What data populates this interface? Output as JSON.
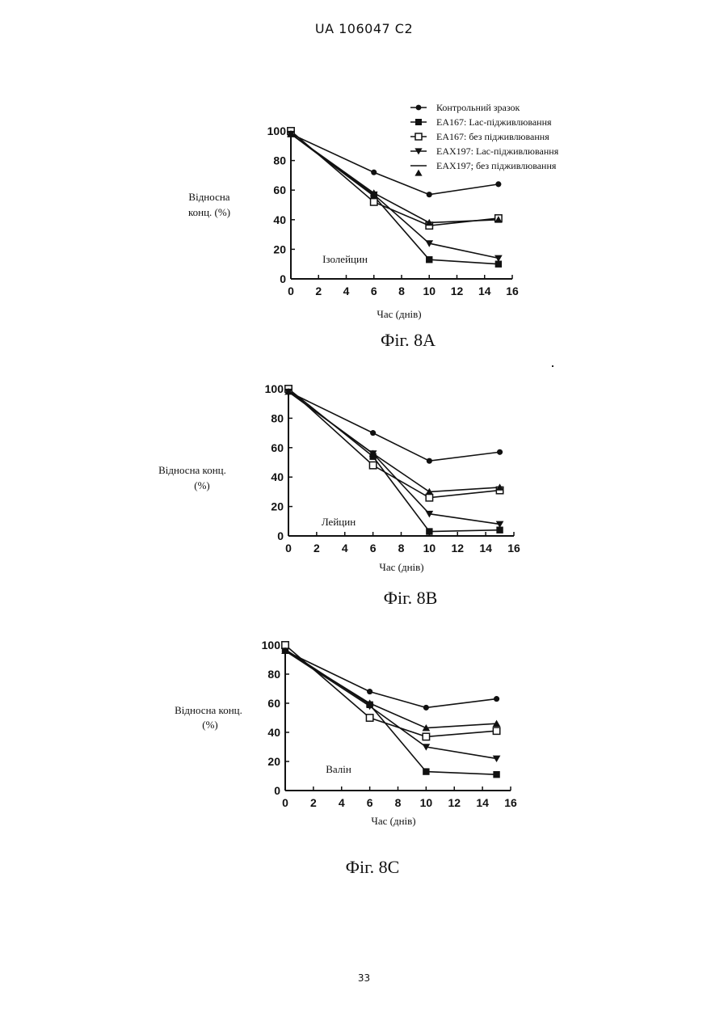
{
  "header": {
    "text": "UA   106047   C2"
  },
  "footer": {
    "page_number": "33"
  },
  "legend": {
    "entries": [
      {
        "label": "Контрольний зразок",
        "marker": "circle"
      },
      {
        "label": "EA167: Lac-підживлювання",
        "marker": "square"
      },
      {
        "label": "EA167: без підживлювання",
        "marker": "open-square"
      },
      {
        "label": "EAX197: Lac-підживлювання",
        "marker": "triangle-down"
      },
      {
        "label": "EAX197; без підживлювання",
        "marker": "triangle-up"
      }
    ]
  },
  "chart_data": [
    {
      "type": "line",
      "figure_label": "Фіг. 8А",
      "inner_label": "Ізолейцин",
      "ylabel_lines": [
        "Відносна",
        "конц. (%)"
      ],
      "xlabel": "Час (днів)",
      "xlim": [
        0,
        16
      ],
      "ylim": [
        0,
        100
      ],
      "xticks": [
        "0",
        "2",
        "4",
        "6",
        "8",
        "10",
        "12",
        "14",
        "16"
      ],
      "yticks": [
        "0",
        "20",
        "40",
        "60",
        "80",
        "100"
      ],
      "x": [
        0,
        6,
        10,
        15
      ],
      "series": [
        {
          "name": "Контрольний зразок",
          "marker": "circle",
          "values": [
            98,
            72,
            57,
            64
          ]
        },
        {
          "name": "EA167: Lac-підживлювання",
          "marker": "square",
          "values": [
            98,
            56,
            13,
            10
          ]
        },
        {
          "name": "EA167: без підживлювання",
          "marker": "open-square",
          "values": [
            100,
            52,
            36,
            41
          ]
        },
        {
          "name": "EAX197: Lac-підживлювання",
          "marker": "triangle-down",
          "values": [
            98,
            57,
            24,
            14
          ]
        },
        {
          "name": "EAX197; без підживлювання",
          "marker": "triangle-up",
          "values": [
            98,
            58,
            38,
            40
          ]
        }
      ]
    },
    {
      "type": "line",
      "figure_label": "Фіг. 8В",
      "inner_label": "Лейцин",
      "ylabel_lines": [
        "Відносна конц.",
        "(%)"
      ],
      "xlabel": "Час (днів)",
      "xlim": [
        0,
        16
      ],
      "ylim": [
        0,
        100
      ],
      "xticks": [
        "0",
        "2",
        "4",
        "6",
        "8",
        "10",
        "12",
        "14",
        "16"
      ],
      "yticks": [
        "0",
        "20",
        "40",
        "60",
        "80",
        "100"
      ],
      "x": [
        0,
        6,
        10,
        15
      ],
      "series": [
        {
          "name": "Контрольний зразок",
          "marker": "circle",
          "values": [
            98,
            70,
            51,
            57
          ]
        },
        {
          "name": "EA167: Lac-підживлювання",
          "marker": "square",
          "values": [
            100,
            54,
            3,
            4
          ]
        },
        {
          "name": "EA167: без підживлювання",
          "marker": "open-square",
          "values": [
            100,
            48,
            26,
            31
          ]
        },
        {
          "name": "EAX197: Lac-підживлювання",
          "marker": "triangle-down",
          "values": [
            98,
            56,
            15,
            8
          ]
        },
        {
          "name": "EAX197; без підживлювання",
          "marker": "triangle-up",
          "values": [
            98,
            56,
            30,
            33
          ]
        }
      ]
    },
    {
      "type": "line",
      "figure_label": "Фіг. 8С",
      "inner_label": "Валін",
      "ylabel_lines": [
        "Відносна конц.",
        "(%)"
      ],
      "xlabel": "Час (днів)",
      "xlim": [
        0,
        16
      ],
      "ylim": [
        0,
        100
      ],
      "xticks": [
        "0",
        "2",
        "4",
        "6",
        "8",
        "10",
        "12",
        "14",
        "16"
      ],
      "yticks": [
        "0",
        "20",
        "40",
        "60",
        "80",
        "100"
      ],
      "x": [
        0,
        6,
        10,
        15
      ],
      "series": [
        {
          "name": "Контрольний зразок",
          "marker": "circle",
          "values": [
            96,
            68,
            57,
            63
          ]
        },
        {
          "name": "EA167: Lac-підживлювання",
          "marker": "square",
          "values": [
            97,
            59,
            13,
            11
          ]
        },
        {
          "name": "EA167: без підживлювання",
          "marker": "open-square",
          "values": [
            100,
            50,
            37,
            41
          ]
        },
        {
          "name": "EAX197: Lac-підживлювання",
          "marker": "triangle-down",
          "values": [
            96,
            58,
            30,
            22
          ]
        },
        {
          "name": "EAX197; без підживлювання",
          "marker": "triangle-up",
          "values": [
            96,
            60,
            43,
            46
          ]
        }
      ]
    }
  ]
}
